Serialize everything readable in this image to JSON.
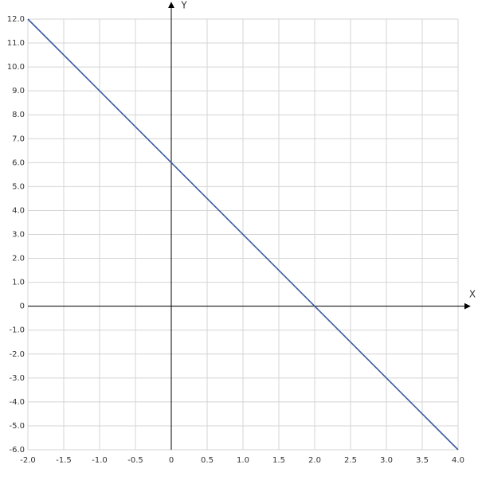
{
  "chart_data": {
    "type": "line",
    "x_label": "X",
    "y_label": "Y",
    "x": [
      -2,
      4
    ],
    "series": [
      {
        "color": "#3a5aa0",
        "values": [
          12,
          -6
        ]
      }
    ],
    "xlim": [
      -2,
      4
    ],
    "ylim": [
      -6,
      12
    ],
    "xticks": [
      {
        "value": -2,
        "label": "-2.0"
      },
      -1.5,
      {
        "value": -1,
        "label": "-1.0"
      },
      -0.5,
      0,
      0.5,
      {
        "value": 1,
        "label": "1.0"
      },
      1.5,
      {
        "value": 2,
        "label": "2.0"
      },
      2.5,
      {
        "value": 3,
        "label": "3.0"
      },
      3.5,
      {
        "value": 4,
        "label": "4.0"
      }
    ],
    "yticks": [
      {
        "value": -6,
        "label": "-6.0"
      },
      {
        "value": -5,
        "label": "-5.0"
      },
      {
        "value": -4,
        "label": "-4.0"
      },
      {
        "value": -3,
        "label": "-3.0"
      },
      {
        "value": -2,
        "label": "-2.0"
      },
      {
        "value": -1,
        "label": "-1.0"
      },
      0,
      {
        "value": 1,
        "label": "1.0"
      },
      {
        "value": 2,
        "label": "2.0"
      },
      {
        "value": 3,
        "label": "3.0"
      },
      {
        "value": 4,
        "label": "4.0"
      },
      {
        "value": 5,
        "label": "5.0"
      },
      {
        "value": 6,
        "label": "6.0"
      },
      {
        "value": 7,
        "label": "7.0"
      },
      {
        "value": 8,
        "label": "8.0"
      },
      {
        "value": 9,
        "label": "9.0"
      },
      {
        "value": 10,
        "label": "10.0"
      },
      {
        "value": 11,
        "label": "11.0"
      },
      {
        "value": 12,
        "label": "12.0"
      }
    ],
    "grid": true
  }
}
